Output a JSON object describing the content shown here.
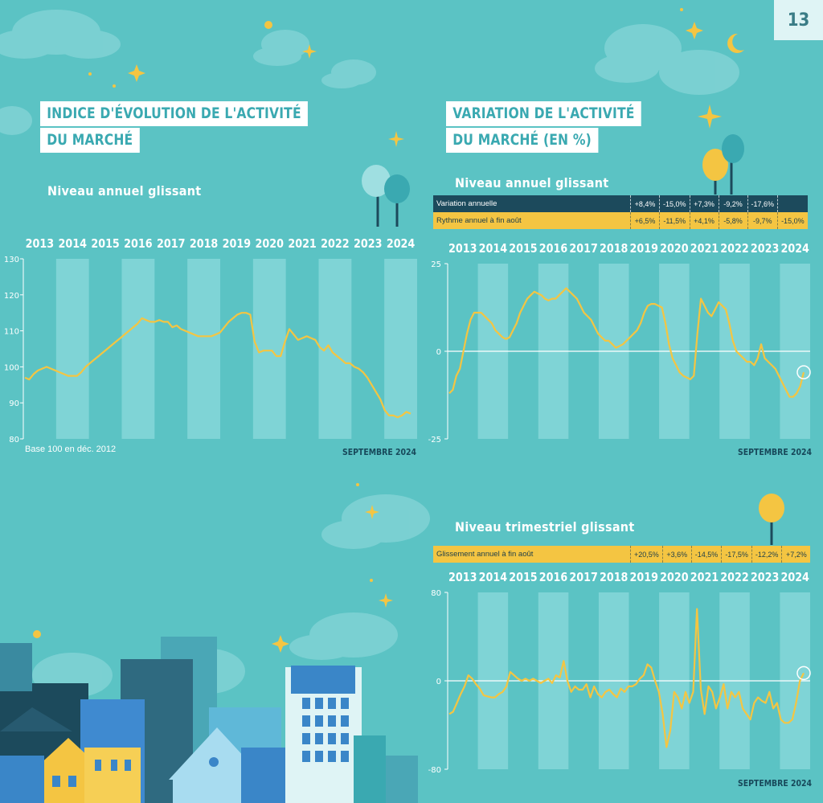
{
  "page_number": "13",
  "left_panel": {
    "title_line1": "INDICE D'ÉVOLUTION DE L'ACTIVITÉ",
    "title_line2": "DU MARCHÉ",
    "subtitle": "Niveau annuel glissant",
    "footnote": "Base 100 en déc. 2012",
    "date_label": "SEPTEMBRE 2024"
  },
  "right_panel": {
    "title_line1": "VARIATION DE L'ACTIVITÉ",
    "title_line2": "DU MARCHÉ (EN %)",
    "annual": {
      "subtitle": "Niveau annuel glissant",
      "rows": [
        {
          "label": "Variation annuelle",
          "values": [
            "+8,4%",
            "-15,0%",
            "+7,3%",
            "-9,2%",
            "-17,6%",
            ""
          ]
        },
        {
          "label": "Rythme annuel à fin août",
          "values": [
            "+6,5%",
            "-11,5%",
            "+4,1%",
            "-5,8%",
            "-9,7%",
            "-15,0%"
          ]
        }
      ],
      "date_label": "SEPTEMBRE 2024"
    },
    "quarterly": {
      "subtitle": "Niveau trimestriel glissant",
      "rows": [
        {
          "label": "Glissement annuel à fin août",
          "values": [
            "+20,5%",
            "+3,6%",
            "-14,5%",
            "-17,5%",
            "-12,2%",
            "+7,2%"
          ]
        }
      ],
      "date_label": "SEPTEMBRE 2024"
    }
  },
  "colors": {
    "background": "#5bc3c4",
    "line": "#f4c542",
    "band": "#7fd4d6",
    "dark": "#1c4a5c"
  },
  "chart_data": [
    {
      "type": "line",
      "years": [
        "2013",
        "2014",
        "2015",
        "2016",
        "2017",
        "2018",
        "2019",
        "2020",
        "2021",
        "2022",
        "2023",
        "2024"
      ],
      "ylim": [
        80,
        130
      ],
      "yticks": [
        "80",
        "90",
        "100",
        "110",
        "120",
        "130"
      ],
      "series": [
        {
          "values": [
            97,
            96.5,
            98,
            99,
            99.5,
            100,
            99.5,
            99,
            98.5,
            98,
            97.5,
            97.5,
            97.5,
            98.5,
            100,
            101,
            102,
            103,
            104,
            105,
            106,
            107,
            108,
            109,
            110,
            111,
            112,
            113.5,
            113,
            112.5,
            112.5,
            113,
            112.5,
            112.5,
            111,
            111.5,
            110.5,
            110,
            109.5,
            109,
            108.5,
            108.5,
            108.5,
            108.5,
            109,
            109.5,
            111,
            112.5,
            113.5,
            114.5,
            115,
            115,
            114.5,
            107,
            104,
            104.5,
            104.5,
            104.5,
            103,
            103,
            107,
            110.5,
            109,
            107.5,
            108,
            108.5,
            108,
            107.5,
            105.5,
            104.5,
            106,
            104,
            103,
            102,
            101,
            101,
            100,
            99.5,
            98.5,
            97,
            95,
            93,
            91,
            88,
            86.5,
            86.5,
            86,
            86.5,
            87.5,
            87
          ]
        }
      ]
    },
    {
      "type": "line",
      "years": [
        "2013",
        "2014",
        "2015",
        "2016",
        "2017",
        "2018",
        "2019",
        "2020",
        "2021",
        "2022",
        "2023",
        "2024"
      ],
      "ylim": [
        -25,
        25
      ],
      "yticks": [
        "25",
        "0",
        "-25"
      ],
      "series": [
        {
          "values": [
            -12,
            -11,
            -7,
            -5,
            0,
            5,
            9,
            11,
            11,
            11,
            10,
            9,
            8,
            6,
            5,
            4,
            3.5,
            4,
            6,
            8,
            11,
            13,
            15,
            16,
            17,
            16.5,
            16,
            15,
            14.5,
            15,
            15,
            16,
            17,
            18,
            17,
            16,
            15,
            13,
            11,
            10,
            9,
            7,
            5,
            4,
            3,
            3,
            2,
            1,
            1.5,
            2,
            3,
            4,
            5,
            6,
            8,
            11,
            13,
            13.5,
            13.5,
            13,
            12.5,
            8,
            2,
            -2,
            -4,
            -6,
            -7,
            -7.5,
            -8,
            -7,
            5,
            15,
            13,
            11,
            10,
            12,
            14,
            13,
            12,
            8,
            3,
            0,
            -1,
            -2,
            -3,
            -3,
            -4,
            -2,
            2,
            -2,
            -3,
            -4,
            -5,
            -7,
            -9,
            -11,
            -13,
            -13,
            -12,
            -10,
            -6
          ]
        }
      ]
    },
    {
      "type": "line",
      "years": [
        "2013",
        "2014",
        "2015",
        "2016",
        "2017",
        "2018",
        "2019",
        "2020",
        "2021",
        "2022",
        "2023",
        "2024"
      ],
      "ylim": [
        -80,
        80
      ],
      "yticks": [
        "80",
        "0",
        "-80"
      ],
      "series": [
        {
          "values": [
            -30,
            -28,
            -20,
            -12,
            -5,
            5,
            2,
            -3,
            -7,
            -13,
            -14,
            -15,
            -15,
            -12,
            -10,
            -5,
            8,
            5,
            2,
            0,
            2,
            0,
            2,
            0,
            -2,
            0,
            2,
            -2,
            5,
            3,
            18,
            0,
            -10,
            -5,
            -8,
            -8,
            -3,
            -15,
            -5,
            -12,
            -15,
            -10,
            -8,
            -12,
            -15,
            -7,
            -10,
            -5,
            -5,
            -3,
            2,
            5,
            15,
            12,
            0,
            -10,
            -30,
            -60,
            -45,
            -10,
            -15,
            -25,
            -10,
            -20,
            -10,
            65,
            -8,
            -30,
            -5,
            -10,
            -25,
            -15,
            -3,
            -25,
            -10,
            -15,
            -10,
            -25,
            -30,
            -35,
            -20,
            -15,
            -18,
            -20,
            -10,
            -25,
            -20,
            -35,
            -38,
            -38,
            -35,
            -20,
            0,
            7
          ]
        }
      ]
    }
  ]
}
